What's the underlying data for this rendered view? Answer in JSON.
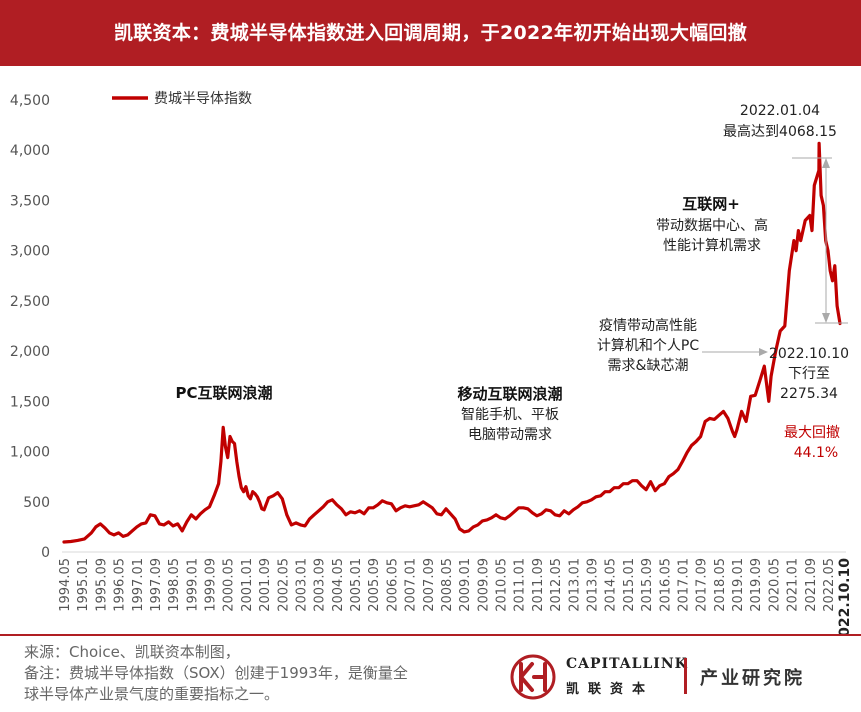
{
  "title": "凯联资本：费城半导体指数进入回调周期，于2022年初开始出现大幅回撤",
  "chart_data": {
    "type": "line",
    "legend": "费城半导体指数",
    "legend_position": "top-left",
    "grid": false,
    "ylim": [
      0,
      4500
    ],
    "yticks": [
      "0",
      "500",
      "1,000",
      "1,500",
      "2,000",
      "2,500",
      "3,000",
      "3,500",
      "4,000",
      "4,500"
    ],
    "xticks": [
      "1994.05",
      "1995.01",
      "1995.09",
      "1996.05",
      "1997.01",
      "1997.09",
      "1998.05",
      "1999.01",
      "1999.09",
      "2000.05",
      "2001.01",
      "2001.09",
      "2002.05",
      "2003.01",
      "2003.09",
      "2004.05",
      "2005.01",
      "2005.09",
      "2006.05",
      "2007.01",
      "2007.09",
      "2008.05",
      "2009.01",
      "2009.09",
      "2010.05",
      "2011.01",
      "2011.09",
      "2012.05",
      "2013.01",
      "2013.09",
      "2014.05",
      "2015.01",
      "2015.09",
      "2016.05",
      "2017.01",
      "2017.09",
      "2018.05",
      "2019.01",
      "2019.09",
      "2020.05",
      "2021.01",
      "2021.09",
      "2022.05",
      "2022.10.10"
    ],
    "series": [
      {
        "name": "费城半导体指数",
        "color": "#c00000",
        "points": [
          [
            "1994.05",
            100
          ],
          [
            "1994.08",
            105
          ],
          [
            "1994.11",
            115
          ],
          [
            "1995.02",
            130
          ],
          [
            "1995.05",
            190
          ],
          [
            "1995.07",
            250
          ],
          [
            "1995.09",
            280
          ],
          [
            "1995.11",
            240
          ],
          [
            "1996.01",
            190
          ],
          [
            "1996.03",
            170
          ],
          [
            "1996.05",
            190
          ],
          [
            "1996.07",
            155
          ],
          [
            "1996.09",
            170
          ],
          [
            "1996.11",
            210
          ],
          [
            "1997.01",
            250
          ],
          [
            "1997.03",
            280
          ],
          [
            "1997.05",
            290
          ],
          [
            "1997.07",
            370
          ],
          [
            "1997.09",
            360
          ],
          [
            "1997.11",
            280
          ],
          [
            "1998.01",
            270
          ],
          [
            "1998.03",
            300
          ],
          [
            "1998.05",
            260
          ],
          [
            "1998.07",
            280
          ],
          [
            "1998.09",
            210
          ],
          [
            "1998.11",
            300
          ],
          [
            "1999.01",
            370
          ],
          [
            "1999.03",
            330
          ],
          [
            "1999.05",
            380
          ],
          [
            "1999.07",
            420
          ],
          [
            "1999.09",
            450
          ],
          [
            "1999.11",
            560
          ],
          [
            "2000.01",
            680
          ],
          [
            "2000.02",
            900
          ],
          [
            "2000.03",
            1240
          ],
          [
            "2000.04",
            1050
          ],
          [
            "2000.05",
            940
          ],
          [
            "2000.06",
            1150
          ],
          [
            "2000.07",
            1100
          ],
          [
            "2000.08",
            1080
          ],
          [
            "2000.09",
            900
          ],
          [
            "2000.10",
            750
          ],
          [
            "2000.11",
            640
          ],
          [
            "2000.12",
            600
          ],
          [
            "2001.01",
            650
          ],
          [
            "2001.02",
            560
          ],
          [
            "2001.03",
            530
          ],
          [
            "2001.04",
            600
          ],
          [
            "2001.05",
            580
          ],
          [
            "2001.06",
            550
          ],
          [
            "2001.07",
            500
          ],
          [
            "2001.08",
            430
          ],
          [
            "2001.09",
            420
          ],
          [
            "2001.11",
            540
          ],
          [
            "2002.01",
            560
          ],
          [
            "2002.03",
            590
          ],
          [
            "2002.05",
            530
          ],
          [
            "2002.07",
            370
          ],
          [
            "2002.09",
            270
          ],
          [
            "2002.11",
            290
          ],
          [
            "2003.01",
            270
          ],
          [
            "2003.03",
            260
          ],
          [
            "2003.05",
            330
          ],
          [
            "2003.07",
            370
          ],
          [
            "2003.09",
            410
          ],
          [
            "2003.11",
            450
          ],
          [
            "2004.01",
            500
          ],
          [
            "2004.03",
            520
          ],
          [
            "2004.05",
            470
          ],
          [
            "2004.07",
            430
          ],
          [
            "2004.09",
            370
          ],
          [
            "2004.11",
            400
          ],
          [
            "2005.01",
            390
          ],
          [
            "2005.03",
            410
          ],
          [
            "2005.05",
            380
          ],
          [
            "2005.07",
            440
          ],
          [
            "2005.09",
            440
          ],
          [
            "2005.11",
            470
          ],
          [
            "2006.01",
            510
          ],
          [
            "2006.03",
            490
          ],
          [
            "2006.05",
            480
          ],
          [
            "2006.07",
            410
          ],
          [
            "2006.09",
            440
          ],
          [
            "2006.11",
            460
          ],
          [
            "2007.01",
            450
          ],
          [
            "2007.03",
            460
          ],
          [
            "2007.05",
            470
          ],
          [
            "2007.07",
            500
          ],
          [
            "2007.09",
            470
          ],
          [
            "2007.11",
            440
          ],
          [
            "2008.01",
            380
          ],
          [
            "2008.03",
            370
          ],
          [
            "2008.05",
            430
          ],
          [
            "2008.07",
            380
          ],
          [
            "2008.09",
            330
          ],
          [
            "2008.11",
            230
          ],
          [
            "2009.01",
            200
          ],
          [
            "2009.03",
            210
          ],
          [
            "2009.05",
            250
          ],
          [
            "2009.07",
            270
          ],
          [
            "2009.09",
            310
          ],
          [
            "2009.11",
            320
          ],
          [
            "2010.01",
            340
          ],
          [
            "2010.03",
            370
          ],
          [
            "2010.05",
            340
          ],
          [
            "2010.07",
            330
          ],
          [
            "2010.09",
            360
          ],
          [
            "2010.11",
            400
          ],
          [
            "2011.01",
            440
          ],
          [
            "2011.03",
            440
          ],
          [
            "2011.05",
            430
          ],
          [
            "2011.07",
            390
          ],
          [
            "2011.09",
            360
          ],
          [
            "2011.11",
            380
          ],
          [
            "2012.01",
            420
          ],
          [
            "2012.03",
            410
          ],
          [
            "2012.05",
            370
          ],
          [
            "2012.07",
            360
          ],
          [
            "2012.09",
            410
          ],
          [
            "2012.11",
            380
          ],
          [
            "2013.01",
            420
          ],
          [
            "2013.03",
            450
          ],
          [
            "2013.05",
            490
          ],
          [
            "2013.07",
            500
          ],
          [
            "2013.09",
            520
          ],
          [
            "2013.11",
            550
          ],
          [
            "2014.01",
            560
          ],
          [
            "2014.03",
            600
          ],
          [
            "2014.05",
            600
          ],
          [
            "2014.07",
            640
          ],
          [
            "2014.09",
            640
          ],
          [
            "2014.11",
            680
          ],
          [
            "2015.01",
            680
          ],
          [
            "2015.03",
            710
          ],
          [
            "2015.05",
            710
          ],
          [
            "2015.07",
            660
          ],
          [
            "2015.09",
            620
          ],
          [
            "2015.11",
            700
          ],
          [
            "2016.01",
            610
          ],
          [
            "2016.03",
            660
          ],
          [
            "2016.05",
            680
          ],
          [
            "2016.07",
            750
          ],
          [
            "2016.09",
            780
          ],
          [
            "2016.11",
            820
          ],
          [
            "2017.01",
            900
          ],
          [
            "2017.03",
            990
          ],
          [
            "2017.05",
            1060
          ],
          [
            "2017.07",
            1100
          ],
          [
            "2017.09",
            1150
          ],
          [
            "2017.11",
            1300
          ],
          [
            "2018.01",
            1330
          ],
          [
            "2018.03",
            1320
          ],
          [
            "2018.05",
            1360
          ],
          [
            "2018.07",
            1400
          ],
          [
            "2018.09",
            1330
          ],
          [
            "2018.11",
            1200
          ],
          [
            "2018.12",
            1150
          ],
          [
            "2019.01",
            1220
          ],
          [
            "2019.03",
            1400
          ],
          [
            "2019.05",
            1300
          ],
          [
            "2019.07",
            1550
          ],
          [
            "2019.09",
            1560
          ],
          [
            "2019.11",
            1700
          ],
          [
            "2020.01",
            1850
          ],
          [
            "2020.03",
            1500
          ],
          [
            "2020.04",
            1750
          ],
          [
            "2020.06",
            2000
          ],
          [
            "2020.08",
            2200
          ],
          [
            "2020.10",
            2250
          ],
          [
            "2020.12",
            2800
          ],
          [
            "2021.02",
            3100
          ],
          [
            "2021.03",
            3000
          ],
          [
            "2021.04",
            3200
          ],
          [
            "2021.05",
            3100
          ],
          [
            "2021.07",
            3300
          ],
          [
            "2021.09",
            3350
          ],
          [
            "2021.10",
            3200
          ],
          [
            "2021.11",
            3650
          ],
          [
            "2022.01.04",
            4068.15
          ],
          [
            "2022.01",
            3800
          ],
          [
            "2022.02",
            3550
          ],
          [
            "2022.03",
            3450
          ],
          [
            "2022.04",
            3100
          ],
          [
            "2022.05",
            3000
          ],
          [
            "2022.06",
            2800
          ],
          [
            "2022.07",
            2700
          ],
          [
            "2022.08",
            2850
          ],
          [
            "2022.09",
            2450
          ],
          [
            "2022.10.10",
            2275.34
          ]
        ]
      }
    ],
    "annotations": {
      "pc_title": "PC互联网浪潮",
      "mobile_title": "移动互联网浪潮",
      "mobile_l1": "智能手机、平板",
      "mobile_l2": "电脑带动需求",
      "internet_title": "互联网+",
      "internet_l1": "带动数据中心、高",
      "internet_l2": "性能计算机需求",
      "covid_l1": "疫情带动高性能",
      "covid_l2": "计算机和个人PC",
      "covid_l3": "需求&缺芯潮",
      "peak_date": "2022.01.04",
      "peak_text": "最高达到4068.15",
      "end_date": "2022.10.10",
      "end_l2": "下行至",
      "end_value": "2275.34",
      "drawdown_label": "最大回撤",
      "drawdown_value": "44.1%"
    }
  },
  "footer": {
    "source": "来源：Choice、凯联资本制图，",
    "note1": "备注：费城半导体指数（SOX）创建于1993年，是衡量全",
    "note2": "球半导体产业景气度的重要指标之一。"
  },
  "brand": {
    "name_en": "CAPITALLINK",
    "name_cn": "凯联资本",
    "dept": "产业研究院",
    "accent": "#b01e23"
  }
}
